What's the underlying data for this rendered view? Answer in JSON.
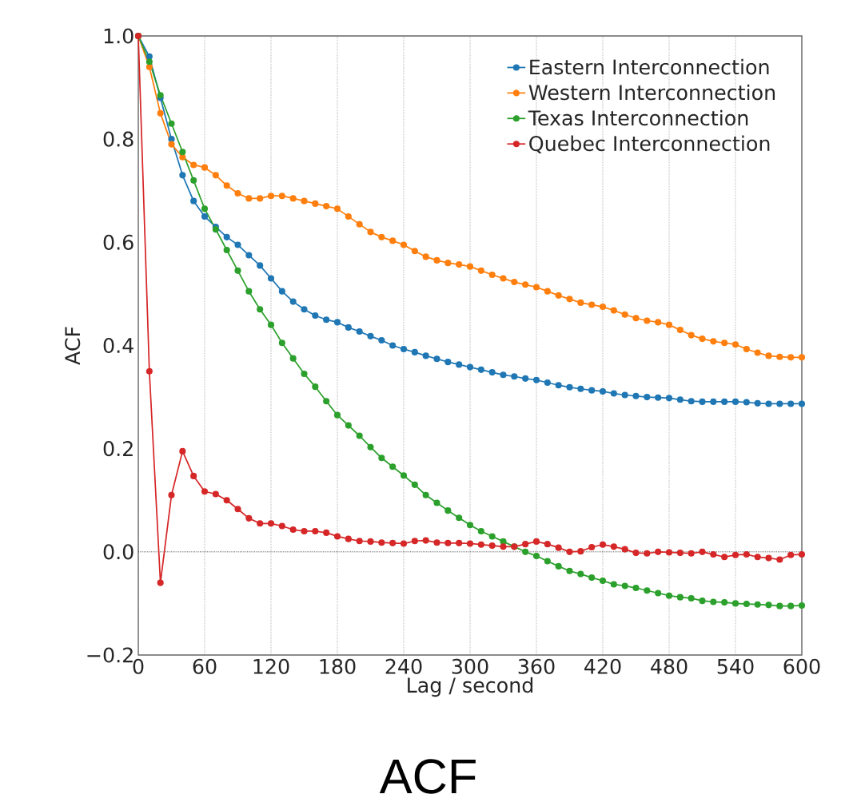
{
  "chart_data": {
    "type": "line",
    "xlabel": "Lag / second",
    "ylabel": "ACF",
    "annotations": [
      "ACF"
    ],
    "x": [
      0,
      10,
      20,
      30,
      40,
      50,
      60,
      70,
      80,
      90,
      100,
      110,
      120,
      130,
      140,
      150,
      160,
      170,
      180,
      190,
      200,
      210,
      220,
      230,
      240,
      250,
      260,
      270,
      280,
      290,
      300,
      310,
      320,
      330,
      340,
      350,
      360,
      370,
      380,
      390,
      400,
      410,
      420,
      430,
      440,
      450,
      460,
      470,
      480,
      490,
      500,
      510,
      520,
      530,
      540,
      550,
      560,
      570,
      580,
      590,
      600
    ],
    "series": [
      {
        "name": "Eastern Interconnection",
        "color": "#1f77b4",
        "values": [
          1.0,
          0.96,
          0.88,
          0.8,
          0.73,
          0.68,
          0.65,
          0.63,
          0.61,
          0.595,
          0.575,
          0.555,
          0.53,
          0.505,
          0.485,
          0.47,
          0.458,
          0.45,
          0.445,
          0.435,
          0.427,
          0.418,
          0.41,
          0.4,
          0.393,
          0.387,
          0.38,
          0.374,
          0.368,
          0.363,
          0.358,
          0.353,
          0.348,
          0.343,
          0.34,
          0.336,
          0.333,
          0.328,
          0.323,
          0.319,
          0.316,
          0.313,
          0.311,
          0.307,
          0.304,
          0.302,
          0.3,
          0.299,
          0.298,
          0.295,
          0.292,
          0.291,
          0.291,
          0.291,
          0.291,
          0.29,
          0.288,
          0.287,
          0.287,
          0.287,
          0.287
        ]
      },
      {
        "name": "Western Interconnection",
        "color": "#ff7f0e",
        "values": [
          1.0,
          0.94,
          0.85,
          0.79,
          0.765,
          0.75,
          0.745,
          0.73,
          0.71,
          0.695,
          0.685,
          0.685,
          0.69,
          0.69,
          0.685,
          0.68,
          0.675,
          0.67,
          0.665,
          0.65,
          0.635,
          0.62,
          0.61,
          0.603,
          0.595,
          0.583,
          0.572,
          0.565,
          0.56,
          0.557,
          0.553,
          0.545,
          0.537,
          0.53,
          0.523,
          0.518,
          0.513,
          0.505,
          0.497,
          0.49,
          0.483,
          0.479,
          0.475,
          0.468,
          0.46,
          0.453,
          0.448,
          0.445,
          0.44,
          0.43,
          0.42,
          0.413,
          0.408,
          0.405,
          0.402,
          0.393,
          0.386,
          0.38,
          0.378,
          0.377,
          0.377
        ]
      },
      {
        "name": "Texas Interconnection",
        "color": "#2ca02c",
        "values": [
          1.0,
          0.95,
          0.885,
          0.83,
          0.775,
          0.72,
          0.665,
          0.625,
          0.585,
          0.545,
          0.505,
          0.47,
          0.44,
          0.405,
          0.375,
          0.345,
          0.32,
          0.292,
          0.265,
          0.245,
          0.225,
          0.203,
          0.182,
          0.165,
          0.148,
          0.13,
          0.11,
          0.095,
          0.08,
          0.066,
          0.052,
          0.04,
          0.03,
          0.02,
          0.01,
          0.0,
          -0.008,
          -0.018,
          -0.028,
          -0.037,
          -0.043,
          -0.05,
          -0.056,
          -0.063,
          -0.066,
          -0.07,
          -0.075,
          -0.08,
          -0.085,
          -0.088,
          -0.09,
          -0.095,
          -0.097,
          -0.098,
          -0.1,
          -0.101,
          -0.102,
          -0.103,
          -0.105,
          -0.105,
          -0.104
        ]
      },
      {
        "name": "Quebec Interconnection",
        "color": "#d62728",
        "values": [
          1.0,
          0.35,
          -0.06,
          0.11,
          0.195,
          0.147,
          0.117,
          0.112,
          0.1,
          0.083,
          0.065,
          0.055,
          0.055,
          0.05,
          0.043,
          0.04,
          0.04,
          0.037,
          0.03,
          0.025,
          0.021,
          0.02,
          0.018,
          0.017,
          0.016,
          0.021,
          0.022,
          0.018,
          0.017,
          0.017,
          0.016,
          0.014,
          0.012,
          0.01,
          0.01,
          0.015,
          0.02,
          0.015,
          0.008,
          0.0,
          0.001,
          0.009,
          0.014,
          0.01,
          0.005,
          -0.002,
          -0.003,
          0.0,
          -0.001,
          -0.002,
          -0.003,
          0.0,
          -0.005,
          -0.01,
          -0.006,
          -0.005,
          -0.01,
          -0.012,
          -0.015,
          -0.006,
          -0.005
        ]
      }
    ],
    "xlim": [
      0,
      600
    ],
    "ylim": [
      -0.2,
      1.0
    ],
    "xticks": [
      0,
      60,
      120,
      180,
      240,
      300,
      360,
      420,
      480,
      540,
      600
    ],
    "yticks": [
      {
        "value": -0.2,
        "label": "−0.2"
      },
      {
        "value": 0.0,
        "label": "0.0"
      },
      {
        "value": 0.2,
        "label": "0.2"
      },
      {
        "value": 0.4,
        "label": "0.4"
      },
      {
        "value": 0.6,
        "label": "0.6"
      },
      {
        "value": 0.8,
        "label": "0.8"
      },
      {
        "value": 1.0,
        "label": "1.0"
      }
    ],
    "ref_lines": [
      {
        "axis": "y",
        "value": 0,
        "color": "#333333",
        "line_style": "dotted"
      }
    ],
    "grid": "x",
    "legend": "top right",
    "marker": "circle",
    "line_style": "solid"
  }
}
